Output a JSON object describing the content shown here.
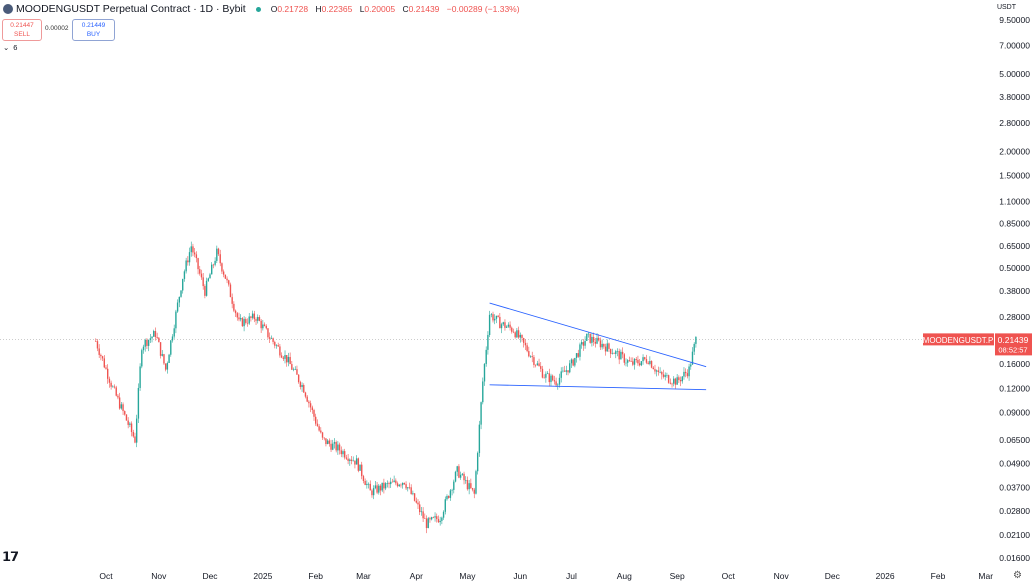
{
  "header": {
    "title": "MOODENGUSDT Perpetual Contract · 1D · Bybit",
    "ohlc": [
      {
        "label": "O",
        "value": "0.21728"
      },
      {
        "label": "H",
        "value": "0.22365"
      },
      {
        "label": "L",
        "value": "0.20005"
      },
      {
        "label": "C",
        "value": "0.21439"
      }
    ],
    "change": "−0.00289 (−1.33%)"
  },
  "trade": {
    "sell_price": "0.21447",
    "sell_label": "SELL",
    "buy_price": "0.21449",
    "buy_label": "BUY",
    "spread": "0.00002"
  },
  "collapse_count": "6",
  "unit": "USDT",
  "colors": {
    "up": "#26a69a",
    "down": "#ef5350",
    "trendline": "#2962ff",
    "price_tag": "#ef5350"
  },
  "icons": [
    "tradingview-logo-icon",
    "settings-icon",
    "chevron-down-icon",
    "symbol-logo-icon"
  ],
  "chart_data": {
    "type": "candlestick",
    "scale": "log",
    "interval": "1D",
    "symbol": "MOODENGUSDT.P",
    "y_ticks": [
      "9.50000",
      "7.00000",
      "5.00000",
      "3.80000",
      "2.80000",
      "2.00000",
      "1.50000",
      "1.10000",
      "0.85000",
      "0.65000",
      "0.50000",
      "0.38000",
      "0.28000",
      "0.16000",
      "0.12000",
      "0.09000",
      "0.06500",
      "0.04900",
      "0.03700",
      "0.02800",
      "0.02100",
      "0.01600"
    ],
    "x_ticks": [
      "Oct",
      "Nov",
      "Dec",
      "2025",
      "Feb",
      "Mar",
      "Apr",
      "May",
      "Jun",
      "Jul",
      "Aug",
      "Sep",
      "Oct",
      "Nov",
      "Dec",
      "2026",
      "Feb",
      "Mar"
    ],
    "last_price": "0.21439",
    "countdown": "08:52:57",
    "price_series": [
      {
        "date": "2024-09-25",
        "close": 0.21
      },
      {
        "date": "2024-10-05",
        "close": 0.12
      },
      {
        "date": "2024-10-18",
        "close": 0.065
      },
      {
        "date": "2024-10-22",
        "close": 0.2
      },
      {
        "date": "2024-10-30",
        "close": 0.23
      },
      {
        "date": "2024-11-05",
        "close": 0.15
      },
      {
        "date": "2024-11-15",
        "close": 0.45
      },
      {
        "date": "2024-11-20",
        "close": 0.65
      },
      {
        "date": "2024-11-28",
        "close": 0.38
      },
      {
        "date": "2024-12-05",
        "close": 0.6
      },
      {
        "date": "2024-12-10",
        "close": 0.45
      },
      {
        "date": "2024-12-18",
        "close": 0.26
      },
      {
        "date": "2024-12-28",
        "close": 0.28
      },
      {
        "date": "2025-01-05",
        "close": 0.22
      },
      {
        "date": "2025-01-15",
        "close": 0.17
      },
      {
        "date": "2025-01-25",
        "close": 0.12
      },
      {
        "date": "2025-02-05",
        "close": 0.065
      },
      {
        "date": "2025-02-15",
        "close": 0.058
      },
      {
        "date": "2025-02-25",
        "close": 0.05
      },
      {
        "date": "2025-03-05",
        "close": 0.035
      },
      {
        "date": "2025-03-15",
        "close": 0.038
      },
      {
        "date": "2025-03-25",
        "close": 0.04
      },
      {
        "date": "2025-04-07",
        "close": 0.024
      },
      {
        "date": "2025-04-15",
        "close": 0.026
      },
      {
        "date": "2025-04-25",
        "close": 0.045
      },
      {
        "date": "2025-05-05",
        "close": 0.034
      },
      {
        "date": "2025-05-10",
        "close": 0.13
      },
      {
        "date": "2025-05-14",
        "close": 0.29
      },
      {
        "date": "2025-05-20",
        "close": 0.26
      },
      {
        "date": "2025-05-28",
        "close": 0.24
      },
      {
        "date": "2025-06-05",
        "close": 0.19
      },
      {
        "date": "2025-06-15",
        "close": 0.14
      },
      {
        "date": "2025-06-22",
        "close": 0.13
      },
      {
        "date": "2025-07-01",
        "close": 0.16
      },
      {
        "date": "2025-07-10",
        "close": 0.22
      },
      {
        "date": "2025-07-20",
        "close": 0.2
      },
      {
        "date": "2025-07-28",
        "close": 0.18
      },
      {
        "date": "2025-08-05",
        "close": 0.16
      },
      {
        "date": "2025-08-15",
        "close": 0.17
      },
      {
        "date": "2025-08-22",
        "close": 0.14
      },
      {
        "date": "2025-09-01",
        "close": 0.13
      },
      {
        "date": "2025-09-08",
        "close": 0.15
      },
      {
        "date": "2025-09-12",
        "close": 0.21439
      }
    ],
    "trendlines": [
      {
        "name": "upper",
        "from": {
          "date": "2025-05-14",
          "price": 0.33
        },
        "to": {
          "date": "2025-09-18",
          "price": 0.155
        }
      },
      {
        "name": "lower",
        "from": {
          "date": "2025-05-14",
          "price": 0.125
        },
        "to": {
          "date": "2025-09-18",
          "price": 0.118
        }
      }
    ]
  }
}
